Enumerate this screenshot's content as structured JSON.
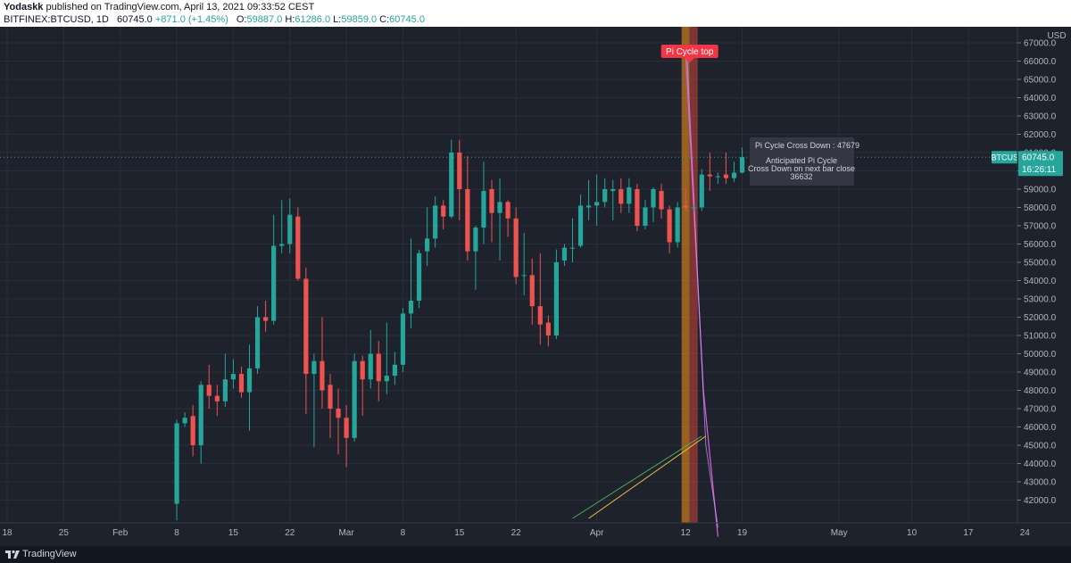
{
  "header": {
    "author": "Yodaskk",
    "published_text": "published on TradingView.com, April 13, 2021 09:33:52 CEST",
    "symbol": "BITFINEX:BTCUSD, 1D",
    "last": "60745.0",
    "change": "+871.0 (+1.45%)",
    "open_label": "O:",
    "open": "59887.0",
    "high_label": "H:",
    "high": "61286.0",
    "low_label": "L:",
    "low": "59859.0",
    "close_label": "C:",
    "close": "60745.0"
  },
  "footer": {
    "brand": "TradingView"
  },
  "colors": {
    "background": "#1e222d",
    "up": "#26a69a",
    "down": "#ef5350",
    "highlight_orange": "#f7931a",
    "highlight_red": "#e0463c",
    "ma_pink": "#e05bd7",
    "ma_green": "#4caf50",
    "ma_yellow": "#f0c23c"
  },
  "chart_data": {
    "type": "candlestick",
    "currency_label": "USD",
    "price_axis_ticks": [
      42000,
      43000,
      44000,
      45000,
      46000,
      47000,
      48000,
      49000,
      50000,
      51000,
      52000,
      53000,
      54000,
      55000,
      56000,
      57000,
      58000,
      59000,
      60000,
      61000,
      62000,
      63000,
      64000,
      65000,
      66000,
      67000
    ],
    "price_range": [
      41000,
      67700
    ],
    "date_axis_labels": [
      "18",
      "25",
      "Feb",
      "8",
      "15",
      "22",
      "Mar",
      "8",
      "15",
      "22",
      "Apr",
      "12",
      "19",
      "May",
      "10",
      "17",
      "24"
    ],
    "date_axis_day_index": [
      0,
      7,
      14,
      21,
      28,
      35,
      42,
      49,
      56,
      63,
      73,
      84,
      91,
      103,
      112,
      119,
      126
    ],
    "first_candle_index": 21,
    "candles": [
      [
        41800,
        46200,
        40900,
        46400
      ],
      [
        46200,
        46500,
        46000,
        46800
      ],
      [
        46600,
        45000,
        44400,
        47200
      ],
      [
        45000,
        48300,
        44000,
        48500
      ],
      [
        48300,
        47700,
        47000,
        49400
      ],
      [
        47700,
        47400,
        46600,
        48300
      ],
      [
        47400,
        48600,
        47100,
        50000
      ],
      [
        48600,
        48900,
        48100,
        49700
      ],
      [
        48900,
        47900,
        47600,
        49300
      ],
      [
        47900,
        49200,
        45800,
        50500
      ],
      [
        49200,
        52000,
        48900,
        52600
      ],
      [
        52000,
        51800,
        51200,
        52900
      ],
      [
        51800,
        55900,
        51600,
        57600
      ],
      [
        55900,
        56000,
        55500,
        58400
      ],
      [
        56000,
        57600,
        55500,
        58500
      ],
      [
        57500,
        54100,
        54000,
        58000
      ],
      [
        54100,
        48900,
        46700,
        54700
      ],
      [
        48900,
        49600,
        44900,
        50000
      ],
      [
        49600,
        48000,
        47000,
        52000
      ],
      [
        48300,
        47000,
        45400,
        48900
      ],
      [
        47000,
        46500,
        44500,
        48100
      ],
      [
        46500,
        45400,
        43800,
        47200
      ],
      [
        45400,
        49600,
        45200,
        50000
      ],
      [
        49600,
        48600,
        46600,
        49900
      ],
      [
        48600,
        50000,
        48100,
        51300
      ],
      [
        50000,
        48500,
        47400,
        50700
      ],
      [
        48500,
        48800,
        47800,
        51700
      ],
      [
        48800,
        49400,
        48300,
        50100
      ],
      [
        49400,
        52200,
        49000,
        52500
      ],
      [
        52200,
        52900,
        51400,
        56300
      ],
      [
        52900,
        55500,
        52500,
        55700
      ],
      [
        55600,
        56300,
        54800,
        58000
      ],
      [
        56300,
        58100,
        55800,
        58600
      ],
      [
        58100,
        57500,
        56800,
        58400
      ],
      [
        57500,
        61000,
        57400,
        61700
      ],
      [
        61000,
        59000,
        57300,
        61700
      ],
      [
        59000,
        55600,
        55100,
        60800
      ],
      [
        55600,
        56900,
        53500,
        57000
      ],
      [
        56900,
        58900,
        56000,
        60500
      ],
      [
        59000,
        57700,
        56100,
        59500
      ],
      [
        57700,
        58300,
        55100,
        59600
      ],
      [
        58300,
        57400,
        56400,
        58400
      ],
      [
        57400,
        54200,
        53800,
        58000
      ],
      [
        54300,
        54300,
        53200,
        56600
      ],
      [
        54300,
        52600,
        51600,
        55200
      ],
      [
        52600,
        51600,
        50500,
        55500
      ],
      [
        51700,
        51000,
        50400,
        52100
      ],
      [
        51000,
        55000,
        50800,
        55700
      ],
      [
        55100,
        55800,
        54800,
        56000
      ],
      [
        55800,
        55800,
        55000,
        57400
      ],
      [
        55900,
        58100,
        55800,
        58700
      ],
      [
        58000,
        58100,
        57300,
        59500
      ],
      [
        58100,
        58300,
        57000,
        59800
      ],
      [
        58300,
        59000,
        58000,
        59600
      ],
      [
        58900,
        59000,
        57300,
        59500
      ],
      [
        59000,
        58200,
        57700,
        59600
      ],
      [
        58200,
        59100,
        57700,
        59600
      ],
      [
        59000,
        57000,
        56700,
        59300
      ],
      [
        57000,
        58000,
        56800,
        58400
      ],
      [
        58000,
        59000,
        57200,
        59100
      ],
      [
        58900,
        57900,
        57400,
        59300
      ],
      [
        57900,
        56100,
        55500,
        58100
      ],
      [
        56100,
        58000,
        55800,
        58300
      ],
      [
        58100,
        58000,
        57800,
        59000
      ],
      [
        58000,
        58000,
        57800,
        58100
      ],
      [
        58000,
        59800,
        57800,
        60100
      ],
      [
        59800,
        59700,
        58900,
        61000
      ],
      [
        59700,
        59700,
        59300,
        59900
      ],
      [
        59800,
        59600,
        59300,
        61000
      ],
      [
        59600,
        59900,
        59400,
        60500
      ],
      [
        59900,
        60745,
        59859,
        61286
      ]
    ],
    "last_price_label": "BTCUSD",
    "last_price": "60745.0",
    "countdown": "16:26:11",
    "annotation": "Pi Cycle top",
    "info_box": {
      "line1": "Pi Cycle Cross Down : 47679",
      "line2": "Anticipated Pi Cycle",
      "line3": "Cross Down on next bar close",
      "line4": "36632"
    },
    "highlight_day_index": [
      84,
      85
    ]
  }
}
